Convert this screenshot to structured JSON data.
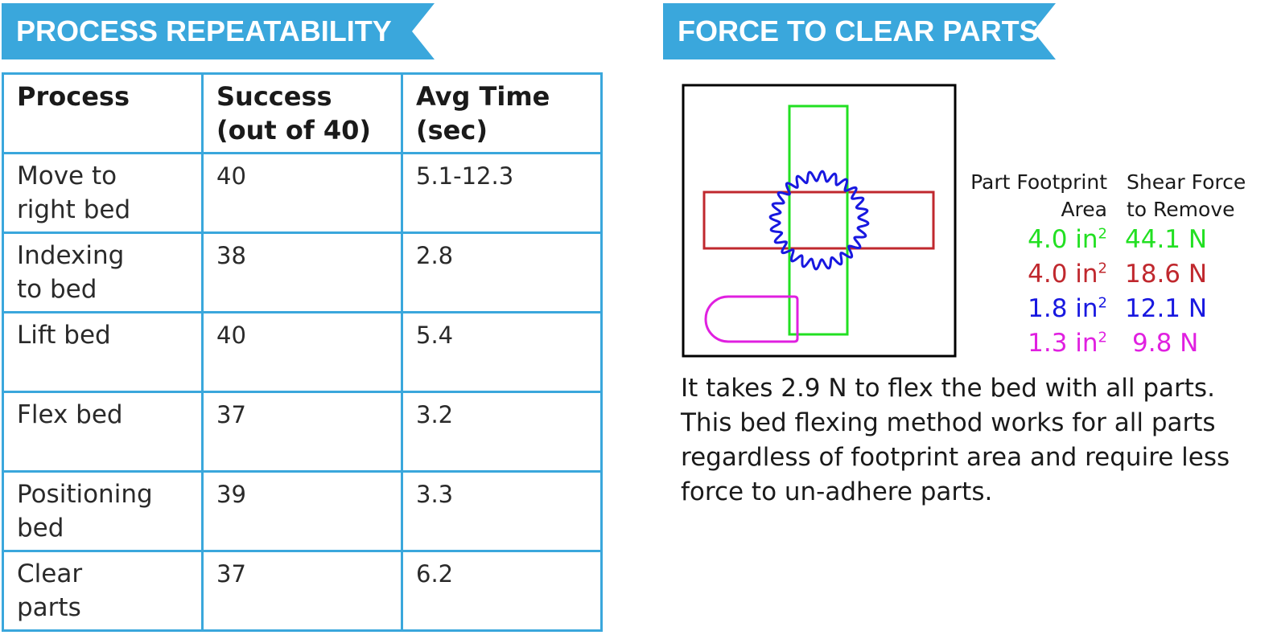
{
  "left_banner": {
    "title": "PROCESS REPEATABILITY",
    "color": "#3aa7dc"
  },
  "right_banner": {
    "title": "FORCE TO CLEAR PARTS",
    "color": "#3aa7dc"
  },
  "table": {
    "headers": {
      "process": "Process",
      "success_line1": "Success",
      "success_line2": "(out of 40)",
      "time_line1": "Avg Time",
      "time_line2": "(sec)"
    },
    "rows": [
      {
        "process_line1": "Move to",
        "process_line2": "right bed",
        "success": "40",
        "time": "5.1-12.3"
      },
      {
        "process_line1": "Indexing",
        "process_line2": "to bed",
        "success": "38",
        "time": "2.8"
      },
      {
        "process_line1": "Lift bed",
        "process_line2": "",
        "success": "40",
        "time": "5.4"
      },
      {
        "process_line1": "Flex bed",
        "process_line2": "",
        "success": "37",
        "time": "3.2"
      },
      {
        "process_line1": "Positioning",
        "process_line2": "bed",
        "success": "39",
        "time": "3.3"
      },
      {
        "process_line1": "Clear",
        "process_line2": "parts",
        "success": "37",
        "time": "6.2"
      }
    ]
  },
  "legend": {
    "area_header_line1": "Part Footprint",
    "area_header_line2": "Area",
    "force_header_line1": "Shear Force",
    "force_header_line2": "to Remove",
    "area_unit": "in",
    "area_exponent": "2",
    "entries": [
      {
        "area": "4.0",
        "force": "44.1 N",
        "color": "#22e022"
      },
      {
        "area": "4.0",
        "force": "18.6 N",
        "color": "#c0282e"
      },
      {
        "area": "1.8",
        "force": "12.1 N",
        "color": "#1818e0"
      },
      {
        "area": "1.3",
        "force": "9.8 N",
        "color": "#e020e0"
      }
    ]
  },
  "diagram": {
    "outline_color": "#000000",
    "green_part_color": "#22e022",
    "red_part_color": "#c0282e",
    "blue_gear_color": "#1818e0",
    "magenta_part_color": "#e020e0"
  },
  "note": "It takes 2.9 N to flex the bed with all parts. This bed flexing method works for all parts regardless of footprint area and require less force to un-adhere parts."
}
